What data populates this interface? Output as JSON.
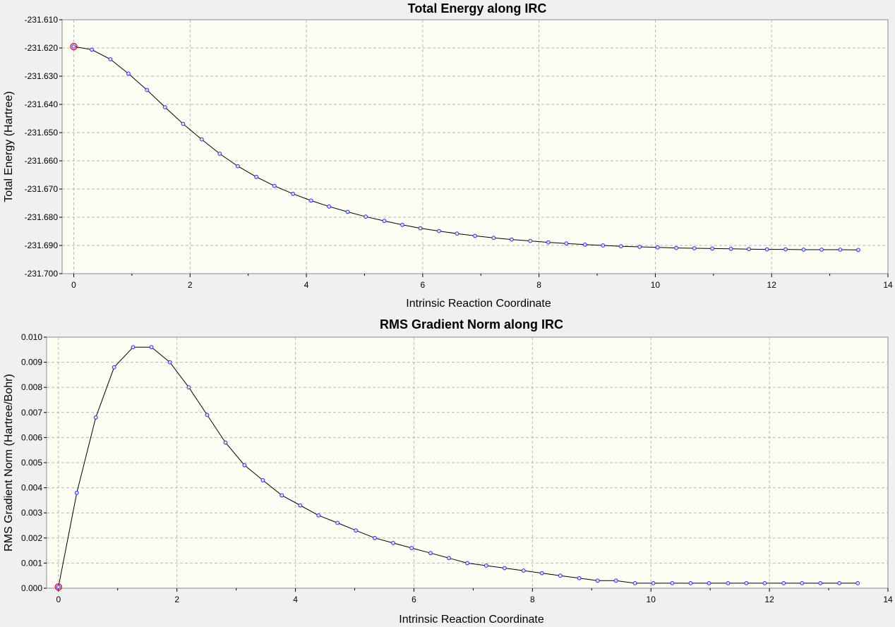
{
  "colors": {
    "plot_background": "#fdfdf3",
    "window_background": "#f0f0f0",
    "marker_stroke": "#2a2aff",
    "line": "#000000",
    "highlight_ring": "#e0001a",
    "grid": "#b8b8b8"
  },
  "chart_data": [
    {
      "type": "line",
      "title": "Total Energy along IRC",
      "xlabel": "Intrinsic Reaction Coordinate",
      "ylabel": "Total Energy (Hartree)",
      "xlim": [
        -0.2,
        14
      ],
      "ylim": [
        -231.7,
        -231.61
      ],
      "xticks": [
        0,
        2,
        4,
        6,
        8,
        10,
        12,
        14
      ],
      "xtick_labels": [
        "0",
        "2",
        "4",
        "6",
        "8",
        "10",
        "12",
        "14"
      ],
      "yticks": [
        -231.61,
        -231.62,
        -231.63,
        -231.64,
        -231.65,
        -231.66,
        -231.67,
        -231.68,
        -231.69,
        -231.7
      ],
      "ytick_labels": [
        "-231.610",
        "-231.620",
        "-231.630",
        "-231.640",
        "-231.650",
        "-231.660",
        "-231.670",
        "-231.680",
        "-231.690",
        "-231.700"
      ],
      "grid": true,
      "highlighted_point_index": 0,
      "x": [
        0,
        0.31,
        0.63,
        0.94,
        1.26,
        1.57,
        1.88,
        2.2,
        2.51,
        2.82,
        3.14,
        3.45,
        3.77,
        4.08,
        4.39,
        4.71,
        5.02,
        5.34,
        5.65,
        5.96,
        6.28,
        6.59,
        6.9,
        7.22,
        7.53,
        7.85,
        8.16,
        8.47,
        8.79,
        9.1,
        9.41,
        9.73,
        10.04,
        10.36,
        10.67,
        10.98,
        11.3,
        11.61,
        11.92,
        12.24,
        12.55,
        12.86,
        13.18,
        13.49
      ],
      "series": [
        {
          "values": [
            -231.6195,
            -231.6206,
            -231.624,
            -231.6291,
            -231.6349,
            -231.641,
            -231.6469,
            -231.6524,
            -231.6575,
            -231.6619,
            -231.6657,
            -231.6689,
            -231.6717,
            -231.6741,
            -231.6762,
            -231.6781,
            -231.6798,
            -231.6813,
            -231.6827,
            -231.6839,
            -231.6849,
            -231.6858,
            -231.6866,
            -231.6873,
            -231.6879,
            -231.6884,
            -231.6889,
            -231.6893,
            -231.6897,
            -231.69,
            -231.6903,
            -231.6905,
            -231.6907,
            -231.6909,
            -231.691,
            -231.6911,
            -231.6912,
            -231.6913,
            -231.6914,
            -231.6914,
            -231.6915,
            -231.6915,
            -231.6915,
            -231.6916
          ]
        }
      ]
    },
    {
      "type": "line",
      "title": "RMS Gradient Norm along IRC",
      "xlabel": "Intrinsic Reaction Coordinate",
      "ylabel": "RMS Gradient Norm (Hartree/Bohr)",
      "xlim": [
        -0.2,
        14
      ],
      "ylim": [
        0,
        0.01
      ],
      "xticks": [
        0,
        2,
        4,
        6,
        8,
        10,
        12,
        14
      ],
      "xtick_labels": [
        "0",
        "2",
        "4",
        "6",
        "8",
        "10",
        "12",
        "14"
      ],
      "yticks": [
        0,
        0.001,
        0.002,
        0.003,
        0.004,
        0.005,
        0.006,
        0.007,
        0.008,
        0.009,
        0.01
      ],
      "ytick_labels": [
        "0.000",
        "0.001",
        "0.002",
        "0.003",
        "0.004",
        "0.005",
        "0.006",
        "0.007",
        "0.008",
        "0.009",
        "0.010"
      ],
      "grid": true,
      "highlighted_point_index": 0,
      "x": [
        0,
        0.31,
        0.63,
        0.94,
        1.26,
        1.57,
        1.88,
        2.2,
        2.51,
        2.82,
        3.14,
        3.45,
        3.77,
        4.08,
        4.39,
        4.71,
        5.02,
        5.34,
        5.65,
        5.96,
        6.28,
        6.59,
        6.9,
        7.22,
        7.53,
        7.85,
        8.16,
        8.47,
        8.79,
        9.1,
        9.41,
        9.73,
        10.04,
        10.36,
        10.67,
        10.98,
        11.3,
        11.61,
        11.92,
        12.24,
        12.55,
        12.86,
        13.18,
        13.49
      ],
      "series": [
        {
          "values": [
            5e-05,
            0.0038,
            0.0068,
            0.0088,
            0.0096,
            0.0096,
            0.009,
            0.008,
            0.0069,
            0.0058,
            0.0049,
            0.0043,
            0.0037,
            0.0033,
            0.0029,
            0.0026,
            0.0023,
            0.002,
            0.0018,
            0.0016,
            0.0014,
            0.0012,
            0.001,
            0.0009,
            0.0008,
            0.0007,
            0.0006,
            0.0005,
            0.0004,
            0.0003,
            0.0003,
            0.0002,
            0.0002,
            0.0002,
            0.0002,
            0.0002,
            0.0002,
            0.0002,
            0.0002,
            0.0002,
            0.0002,
            0.0002,
            0.0002,
            0.0002
          ]
        }
      ]
    }
  ]
}
